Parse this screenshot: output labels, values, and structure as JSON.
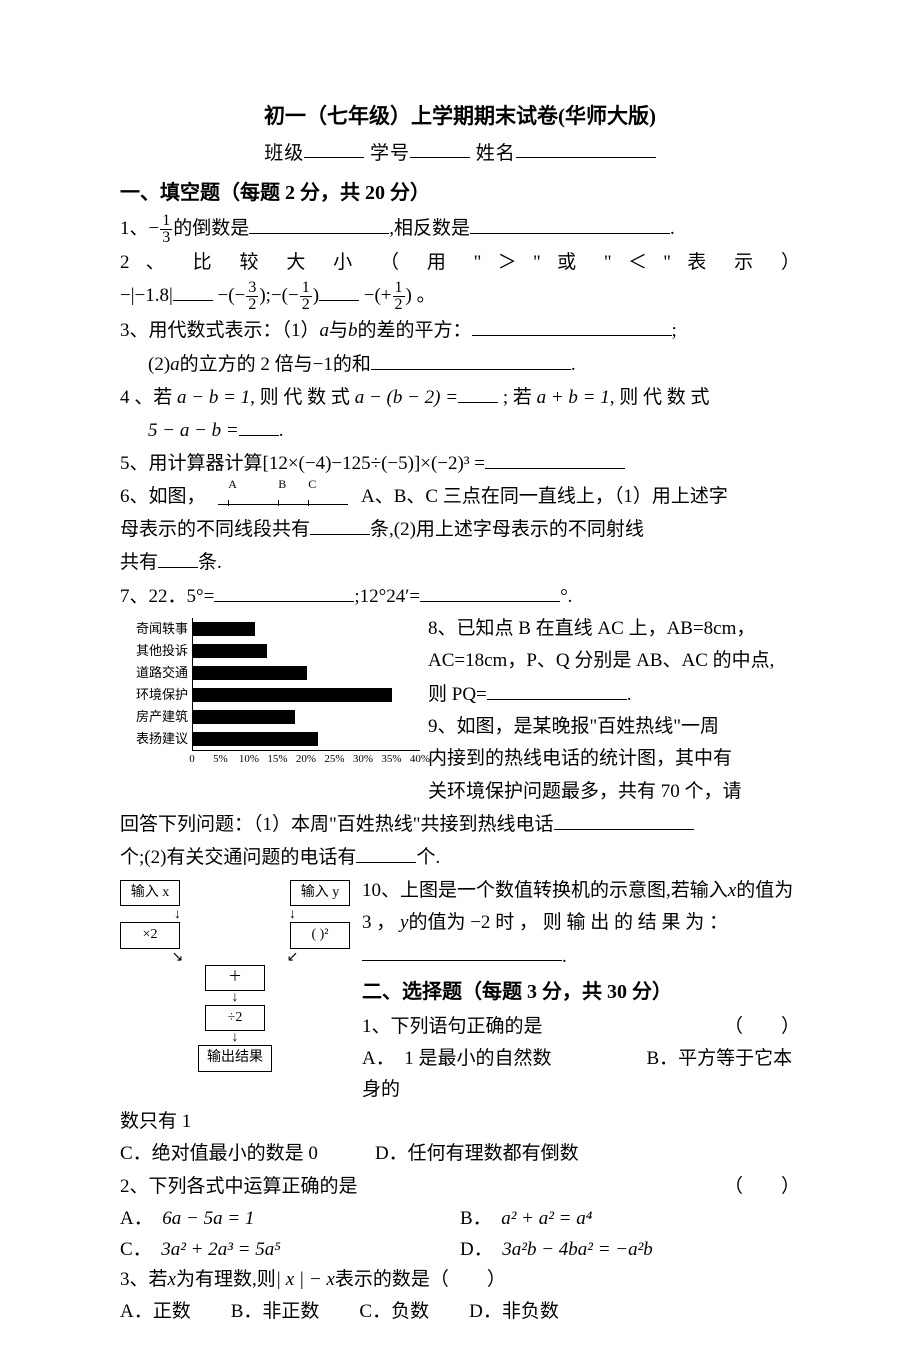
{
  "header": {
    "title": "初一（七年级）上学期期末试卷(华师大版)",
    "class_label": "班级",
    "id_label": "学号",
    "name_label": "姓名"
  },
  "section1": {
    "header": "一、填空题（每题 2 分，共 20 分）",
    "q1_pre": "1、",
    "q1_mid": "的倒数是",
    "q1_end": ",相反数是",
    "q1_period": ".",
    "q2": "2 、 比 较 大 小 （ 用 \" ＞ \" 或 \" ＜ \" 表 示 ）",
    "q2_expr1_a": "−|−1.8|",
    "q2_expr2_a": "−(−",
    "q2_expr2_b": ");−(−",
    "q2_expr2_c": ")",
    "q2_expr2_d": "−(+",
    "q2_expr2_e": ")",
    "q2_period": "。",
    "q3a": "3、用代数式表示：（1）",
    "q3a_mid": "与",
    "q3a_end": "的差的平方：",
    "q3a_sc": ";",
    "q3b": "(2)",
    "q3b_mid": "的立方的 2 倍与",
    "q3b_end": "的和",
    "q3b_period": ".",
    "q4a": "4 、若 ",
    "q4a_eq": "a − b = 1",
    "q4a_mid": ", 则 代 数 式 ",
    "q4a_expr": "a − (b − 2) =",
    "q4a_sc": " ; 若 ",
    "q4a_eq2": "a + b = 1",
    "q4a_end": ", 则 代 数 式",
    "q4b": "5 − a − b =",
    "q4b_period": ".",
    "q5": "5、用计算器计算",
    "q5_expr": "[12×(−4)−125÷(−5)]×(−2)³ =",
    "q6a": "6、如图，",
    "q6a_mid": " A、B、C 三点在同一直线上，（1）用上述字",
    "q6b": "母表示的不同线段共有",
    "q6b_mid": "条,(2)用上述字母表示的不同射线",
    "q6c": "共有",
    "q6c_end": "条.",
    "q7a": "7、22．5°=",
    "q7a_mid": ";12°24′=",
    "q7a_end": "°.",
    "q8a": "8、已知点 B 在直线 AC 上，AB=8cm，",
    "q8b": "AC=18cm，P、Q 分别是 AB、AC 的中点,",
    "q8c": "则 PQ=",
    "q8c_period": ".",
    "q9a": "9、如图，是某晚报\"百姓热线\"一周",
    "q9b": "内接到的热线电话的统计图，其中有",
    "q9c": "关环境保护问题最多，共有 70 个，请",
    "q9d": "回答下列问题：（1）本周\"百姓热线\"共接到热线电话",
    "q9e": "个;(2)有关交通问题的电话有",
    "q9e_end": "个.",
    "q10a": "10、上图是一个数值转换机的示意图,若输入",
    "q10a_end": "的值为",
    "q10b_a": "3 ， ",
    "q10b_b": "的值为",
    "q10b_c": "时 ， 则 输 出 的 结 果 为 ：",
    "q10c_period": "."
  },
  "chart": {
    "categories": [
      "奇闻轶事",
      "其他投诉",
      "道路交通",
      "环境保护",
      "房产建筑",
      "表扬建议"
    ],
    "values": [
      11,
      13,
      20,
      35,
      18,
      22
    ],
    "max": 40,
    "bar_color": "#000000",
    "ticks": [
      0,
      5,
      10,
      15,
      20,
      25,
      30,
      35,
      40
    ],
    "tick_labels": [
      "0",
      "5%",
      "10%",
      "15%",
      "20%",
      "25%",
      "30%",
      "35%",
      "40%"
    ]
  },
  "flowchart": {
    "input_x": "输入 x",
    "input_y": "输入 y",
    "op1": "×2",
    "op2": "( )²",
    "plus": "＋",
    "div": "÷2",
    "output": "输出结果"
  },
  "line_diagram": {
    "labels": [
      "A",
      "B",
      "C"
    ],
    "positions": [
      10,
      60,
      90
    ]
  },
  "section2": {
    "header": "二、选择题（每题 3 分，共 30 分）",
    "q1": "1、下列语句正确的是",
    "q1_paren": "（　　）",
    "q1a": "A．　1 是最小的自然数",
    "q1b": "B．平方等于它本身的",
    "q1b2": "数只有 1",
    "q1c": "C．绝对值最小的数是 0",
    "q1d": "D．任何有理数都有倒数",
    "q2": "2、下列各式中运算正确的是",
    "q2_paren": "（　　）",
    "q2a": "A．",
    "q2a_expr": "6a − 5a = 1",
    "q2b": "B．",
    "q2b_expr": "a² + a² = a⁴",
    "q2c": "C．",
    "q2c_expr": "3a² + 2a³ = 5a⁵",
    "q2d": "D．",
    "q2d_expr": "3a²b − 4ba² = −a²b",
    "q3": "3、若",
    "q3_mid": "为有理数,则",
    "q3_end": "表示的数是（　　）",
    "q3a": "A．正数",
    "q3b": "B．非正数",
    "q3c": "C．负数",
    "q3d": "D．非负数"
  },
  "math": {
    "minus1over3_num": "1",
    "minus1over3_den": "3",
    "three_half_num": "3",
    "three_half_den": "2",
    "one_half_num": "1",
    "one_half_den": "2",
    "a": "a",
    "b": "b",
    "minus1": "−1",
    "x": "x",
    "y": "y",
    "minus2": "−2",
    "abs_x_minus_x": "| x | − x"
  }
}
